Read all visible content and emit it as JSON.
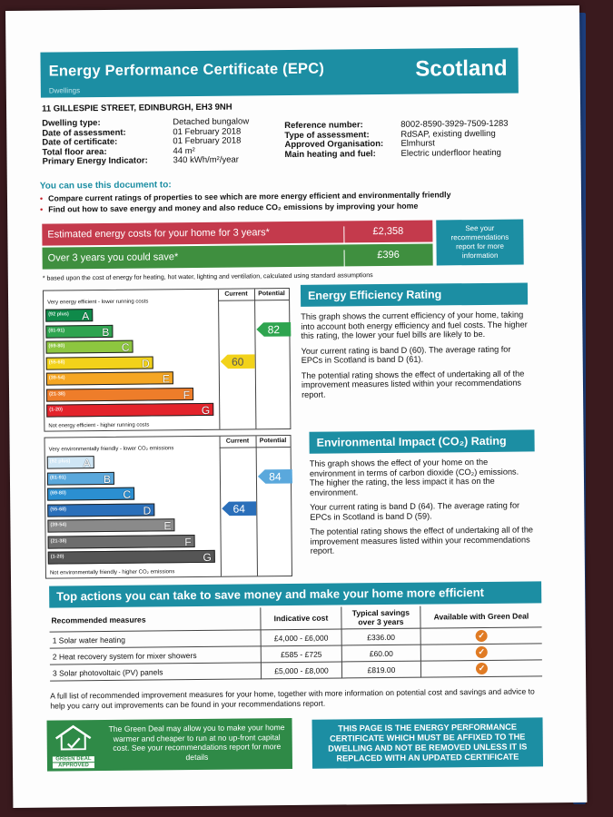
{
  "header": {
    "title": "Energy Performance Certificate (EPC)",
    "subtitle": "Dwellings",
    "country": "Scotland",
    "header_color": "#1c8ea3"
  },
  "address": "11 GILLESPIE STREET, EDINBURGH, EH3 9NH",
  "details_left": [
    {
      "key": "Dwelling type:",
      "value": "Detached bungalow"
    },
    {
      "key": "Date of assessment:",
      "value": "01 February 2018"
    },
    {
      "key": "Date of certificate:",
      "value": "01 February 2018"
    },
    {
      "key": "Total floor area:",
      "value": "44 m²"
    },
    {
      "key": "Primary Energy Indicator:",
      "value": "340 kWh/m²/year"
    }
  ],
  "details_right": [
    {
      "key": "Reference number:",
      "value": "8002-8590-3929-7509-1283"
    },
    {
      "key": "Type of assessment:",
      "value": "RdSAP, existing dwelling"
    },
    {
      "key": "Approved Organisation:",
      "value": "Elmhurst"
    },
    {
      "key": "Main heating and fuel:",
      "value": "Electric underfloor heating"
    }
  ],
  "use_this": {
    "title": "You can use this document to:",
    "bullets": [
      "Compare current ratings of properties to see which are more energy efficient and environmentally friendly",
      "Find out how to save energy and money and also reduce CO₂ emissions by improving your home"
    ]
  },
  "costs": {
    "estimated_label": "Estimated energy costs for your home for 3 years*",
    "estimated_value": "£2,358",
    "save_label": "Over 3 years you could save*",
    "save_value": "£396",
    "see_box": "See your recommendations report for more information",
    "footnote": "* based upon the cost of energy for heating, hot water, lighting and ventilation, calculated using standard assumptions"
  },
  "ee_chart": {
    "top_label": "Very energy efficient - lower running costs",
    "bottom_label": "Not energy efficient - higher running costs",
    "col_current": "Current",
    "col_potential": "Potential",
    "bands": [
      {
        "range": "(92 plus)",
        "letter": "A",
        "color": "#0f8a4a"
      },
      {
        "range": "(81-91)",
        "letter": "B",
        "color": "#2ea44f"
      },
      {
        "range": "(69-80)",
        "letter": "C",
        "color": "#8dc63f"
      },
      {
        "range": "(55-68)",
        "letter": "D",
        "color": "#f2d21a"
      },
      {
        "range": "(39-54)",
        "letter": "E",
        "color": "#f5a623"
      },
      {
        "range": "(21-38)",
        "letter": "F",
        "color": "#ee7d2a"
      },
      {
        "range": "(1-20)",
        "letter": "G",
        "color": "#e3232b"
      }
    ],
    "current": 60,
    "current_band": "D",
    "potential": 82,
    "potential_band": "B"
  },
  "ee_text": {
    "title": "Energy Efficiency Rating",
    "p1": "This graph shows the current efficiency of your home, taking into account both energy efficiency and fuel costs. The higher this rating, the lower your fuel bills are likely to be.",
    "p2": "Your current rating is band D (60). The average rating for EPCs in Scotland is band D (61).",
    "p3": "The potential rating shows the effect of undertaking all of the improvement measures listed within your recommendations report."
  },
  "ei_chart": {
    "top_label": "Very environmentally friendly - lower CO₂ emissions",
    "bottom_label": "Not environmentally friendly - higher CO₂ emissions",
    "col_current": "Current",
    "col_potential": "Potential",
    "bands": [
      {
        "range": "(92 plus)",
        "letter": "A",
        "color": "#cfe6f5"
      },
      {
        "range": "(81-91)",
        "letter": "B",
        "color": "#5aa8dc"
      },
      {
        "range": "(69-80)",
        "letter": "C",
        "color": "#2b8fd1"
      },
      {
        "range": "(55-68)",
        "letter": "D",
        "color": "#2a6fba"
      },
      {
        "range": "(39-54)",
        "letter": "E",
        "color": "#8a8a8a"
      },
      {
        "range": "(21-38)",
        "letter": "F",
        "color": "#6d6d6d"
      },
      {
        "range": "(1-20)",
        "letter": "G",
        "color": "#555555"
      }
    ],
    "current": 64,
    "current_band": "D",
    "potential": 84,
    "potential_band": "B"
  },
  "ei_text": {
    "title": "Environmental Impact (CO₂) Rating",
    "p1": "This graph shows the effect of your home on the environment in terms of carbon dioxide (CO₂) emissions. The higher the rating, the less impact it has on the environment.",
    "p2": "Your current rating is band D (64). The average rating for EPCs in Scotland is band D (59).",
    "p3": "The potential rating shows the effect of undertaking all of the improvement measures listed within your recommendations report."
  },
  "actions": {
    "title": "Top actions you can take to save money and make your home more efficient",
    "headers": [
      "Recommended measures",
      "Indicative cost",
      "Typical savings over 3 years",
      "Available with Green Deal"
    ],
    "rows": [
      {
        "measure": "1 Solar water heating",
        "cost": "£4,000 - £6,000",
        "savings": "£336.00",
        "green_deal": true
      },
      {
        "measure": "2 Heat recovery system for mixer showers",
        "cost": "£585 - £725",
        "savings": "£60.00",
        "green_deal": true
      },
      {
        "measure": "3 Solar photovoltaic (PV) panels",
        "cost": "£5,000 - £8,000",
        "savings": "£819.00",
        "green_deal": true
      }
    ],
    "note": "A full list of recommended improvement measures for your home, together with more information on potential cost and savings and advice to help you carry out improvements can be found in your recommendations report."
  },
  "green_deal": {
    "text": "The Green Deal may allow you to make your home warmer and cheaper to run at no up-front capital cost. See your recommendations report for more details",
    "logo_top": "GREEN DEAL",
    "logo_bottom": "APPROVED"
  },
  "notice": "THIS PAGE IS THE ENERGY PERFORMANCE CERTIFICATE WHICH MUST BE AFFIXED TO THE DWELLING AND NOT BE REMOVED UNLESS IT IS REPLACED WITH AN UPDATED CERTIFICATE"
}
